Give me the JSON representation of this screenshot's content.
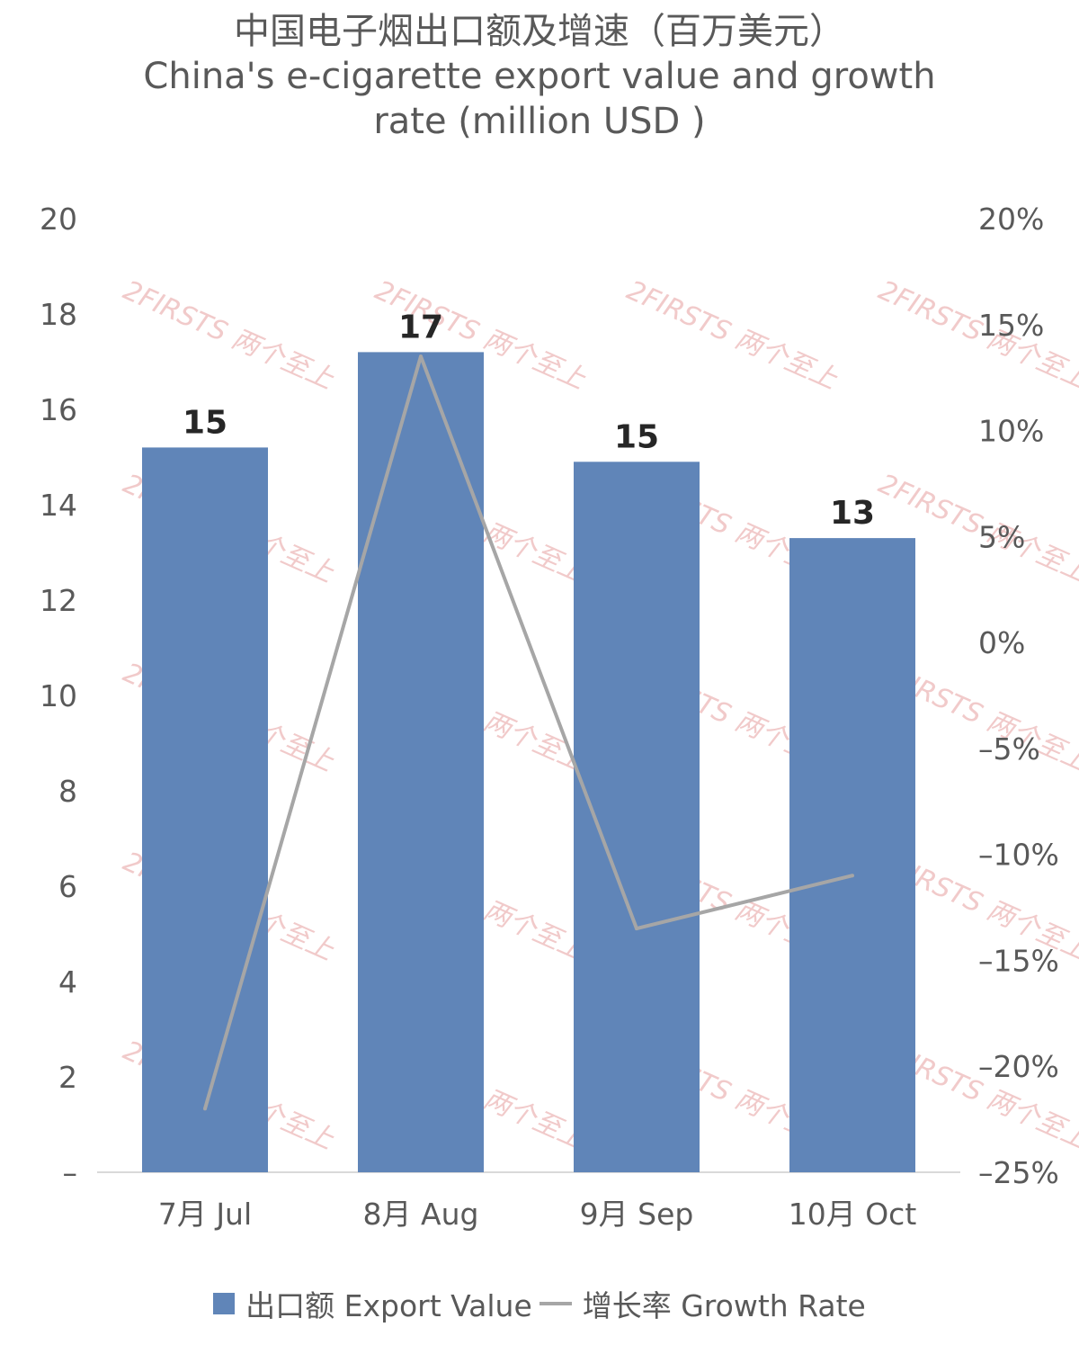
{
  "title_lines": [
    "中国电子烟出口额及增速（百万美元）",
    "China's e-cigarette export value and growth",
    "rate (million USD )"
  ],
  "watermark": "2FIRSTS 两个至上",
  "colors": {
    "bar": "#6085b8",
    "line": "#a6a6a6",
    "axis_text": "#595959",
    "label": "#262626"
  },
  "chart_data": {
    "type": "bar",
    "categories": [
      "7月 Jul",
      "8月 Aug",
      "9月 Sep",
      "10月 Oct"
    ],
    "series": [
      {
        "name": "出口额 Export Value",
        "type": "bar",
        "axis": "left",
        "values": [
          15.2,
          17.2,
          14.9,
          13.3
        ],
        "data_labels": [
          "15",
          "17",
          "15",
          "13"
        ]
      },
      {
        "name": "增长率 Growth Rate",
        "type": "line",
        "axis": "right",
        "values": [
          -22,
          13.5,
          -13.5,
          -11
        ]
      }
    ],
    "y_left": {
      "ylim": [
        0,
        20
      ],
      "ticks": [
        "–",
        "2",
        "4",
        "6",
        "8",
        "10",
        "12",
        "14",
        "16",
        "18",
        "20"
      ]
    },
    "y_right": {
      "ylim": [
        -25,
        20
      ],
      "ticks": [
        "–25%",
        "–20%",
        "–15%",
        "–10%",
        "–5%",
        "0%",
        "5%",
        "10%",
        "15%",
        "20%"
      ]
    },
    "grid": false,
    "legend_position": "bottom"
  }
}
